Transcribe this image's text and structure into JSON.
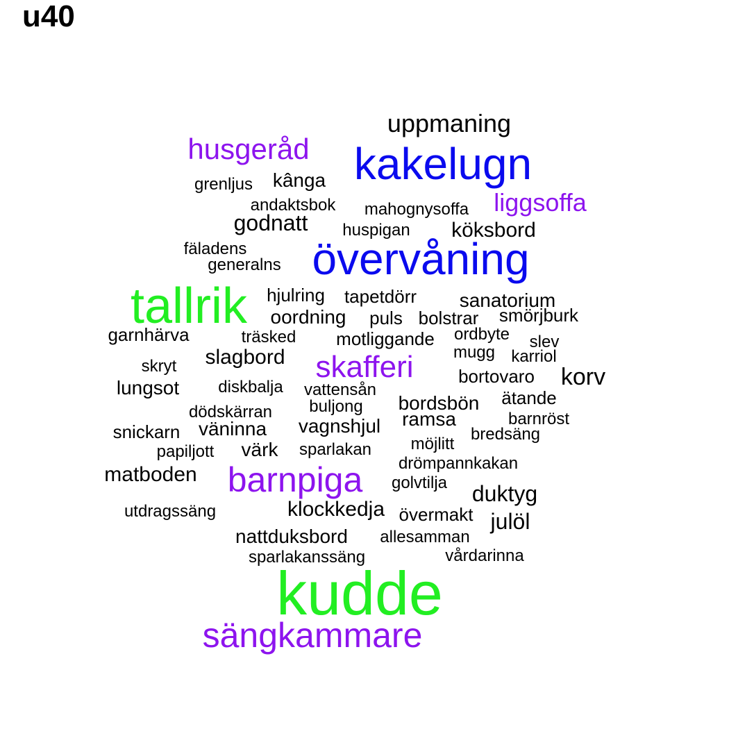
{
  "title": "u40",
  "colors": {
    "green": "#22ee22",
    "blue": "#0a0aee",
    "purple": "#8d14ee",
    "black": "#000000"
  },
  "words": [
    {
      "text": "kudde",
      "color": "green"
    },
    {
      "text": "tallrik",
      "color": "green"
    },
    {
      "text": "kakelugn",
      "color": "blue"
    },
    {
      "text": "övervåning",
      "color": "blue"
    },
    {
      "text": "sängkammare",
      "color": "purple"
    },
    {
      "text": "barnpiga",
      "color": "purple"
    },
    {
      "text": "skafferi",
      "color": "purple"
    },
    {
      "text": "husgeråd",
      "color": "purple"
    },
    {
      "text": "liggsoffa",
      "color": "purple"
    },
    {
      "text": "uppmaning",
      "color": "black"
    },
    {
      "text": "godnatt",
      "color": "black"
    },
    {
      "text": "köksbord",
      "color": "black"
    },
    {
      "text": "kânga",
      "color": "black"
    },
    {
      "text": "grenljus",
      "color": "black"
    },
    {
      "text": "andaktsbok",
      "color": "black"
    },
    {
      "text": "mahognysoffa",
      "color": "black"
    },
    {
      "text": "huspigan",
      "color": "black"
    },
    {
      "text": "fäladens",
      "color": "black"
    },
    {
      "text": "generalns",
      "color": "black"
    },
    {
      "text": "hjulring",
      "color": "black"
    },
    {
      "text": "tapetdörr",
      "color": "black"
    },
    {
      "text": "sanatorium",
      "color": "black"
    },
    {
      "text": "oordning",
      "color": "black"
    },
    {
      "text": "puls",
      "color": "black"
    },
    {
      "text": "bolstrar",
      "color": "black"
    },
    {
      "text": "smörjburk",
      "color": "black"
    },
    {
      "text": "garnhärva",
      "color": "black"
    },
    {
      "text": "träsked",
      "color": "black"
    },
    {
      "text": "motliggande",
      "color": "black"
    },
    {
      "text": "ordbyte",
      "color": "black"
    },
    {
      "text": "slev",
      "color": "black"
    },
    {
      "text": "slagbord",
      "color": "black"
    },
    {
      "text": "mugg",
      "color": "black"
    },
    {
      "text": "karriol",
      "color": "black"
    },
    {
      "text": "skryt",
      "color": "black"
    },
    {
      "text": "bortovaro",
      "color": "black"
    },
    {
      "text": "korv",
      "color": "black"
    },
    {
      "text": "lungsot",
      "color": "black"
    },
    {
      "text": "diskbalja",
      "color": "black"
    },
    {
      "text": "vattensån",
      "color": "black"
    },
    {
      "text": "ätande",
      "color": "black"
    },
    {
      "text": "bordsbön",
      "color": "black"
    },
    {
      "text": "buljong",
      "color": "black"
    },
    {
      "text": "dödskärran",
      "color": "black"
    },
    {
      "text": "barnröst",
      "color": "black"
    },
    {
      "text": "ramsa",
      "color": "black"
    },
    {
      "text": "snickarn",
      "color": "black"
    },
    {
      "text": "väninna",
      "color": "black"
    },
    {
      "text": "vagnshjul",
      "color": "black"
    },
    {
      "text": "bredsäng",
      "color": "black"
    },
    {
      "text": "möjlitt",
      "color": "black"
    },
    {
      "text": "papiljott",
      "color": "black"
    },
    {
      "text": "värk",
      "color": "black"
    },
    {
      "text": "sparlakan",
      "color": "black"
    },
    {
      "text": "drömpannkakan",
      "color": "black"
    },
    {
      "text": "matboden",
      "color": "black"
    },
    {
      "text": "golvtilja",
      "color": "black"
    },
    {
      "text": "duktyg",
      "color": "black"
    },
    {
      "text": "utdragssäng",
      "color": "black"
    },
    {
      "text": "klockkedja",
      "color": "black"
    },
    {
      "text": "övermakt",
      "color": "black"
    },
    {
      "text": "julöl",
      "color": "black"
    },
    {
      "text": "nattduksbord",
      "color": "black"
    },
    {
      "text": "allesamman",
      "color": "black"
    },
    {
      "text": "vårdarinna",
      "color": "black"
    },
    {
      "text": "sparlakanssäng",
      "color": "black"
    }
  ]
}
